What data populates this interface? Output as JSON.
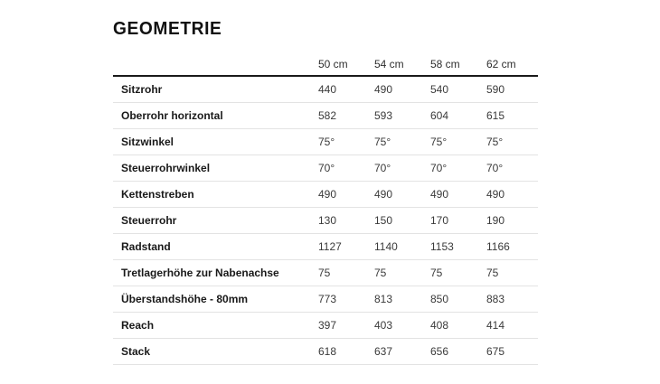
{
  "title": "GEOMETRIE",
  "table": {
    "columns": [
      "50 cm",
      "54 cm",
      "58 cm",
      "62 cm"
    ],
    "rows": [
      {
        "label": "Sitzrohr",
        "values": [
          "440",
          "490",
          "540",
          "590"
        ]
      },
      {
        "label": "Oberrohr horizontal",
        "values": [
          "582",
          "593",
          "604",
          "615"
        ]
      },
      {
        "label": "Sitzwinkel",
        "values": [
          "75°",
          "75°",
          "75°",
          "75°"
        ]
      },
      {
        "label": "Steuerrohrwinkel",
        "values": [
          "70°",
          "70°",
          "70°",
          "70°"
        ]
      },
      {
        "label": "Kettenstreben",
        "values": [
          "490",
          "490",
          "490",
          "490"
        ]
      },
      {
        "label": "Steuerrohr",
        "values": [
          "130",
          "150",
          "170",
          "190"
        ]
      },
      {
        "label": "Radstand",
        "values": [
          "1127",
          "1140",
          "1153",
          "1166"
        ]
      },
      {
        "label": "Tretlagerhöhe zur Nabenachse",
        "values": [
          "75",
          "75",
          "75",
          "75"
        ]
      },
      {
        "label": "Überstandshöhe - 80mm",
        "values": [
          "773",
          "813",
          "850",
          "883"
        ]
      },
      {
        "label": "Reach",
        "values": [
          "397",
          "403",
          "408",
          "414"
        ]
      },
      {
        "label": "Stack",
        "values": [
          "618",
          "637",
          "656",
          "675"
        ]
      }
    ]
  },
  "colors": {
    "background": "#ffffff",
    "title_text": "#111111",
    "header_rule": "#1a1a1a",
    "row_divider": "#e3e3e3",
    "label_text": "#191919",
    "value_text": "#3a3a3a"
  }
}
